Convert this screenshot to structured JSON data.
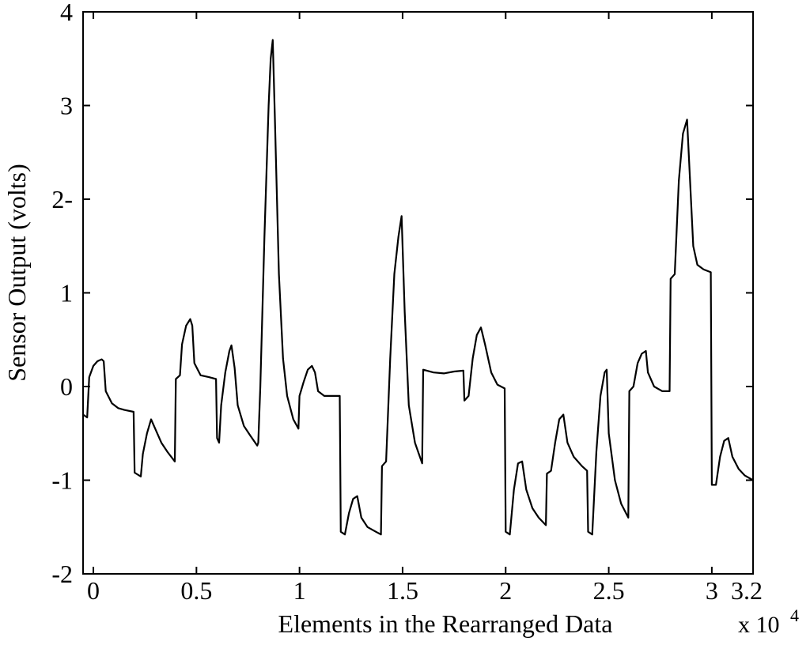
{
  "chart_data": {
    "type": "line",
    "title": "",
    "xlabel": "Elements in the Rearranged Data",
    "ylabel": "Sensor Output (volts)",
    "x_multiplier_label": "x 10",
    "x_multiplier_exponent": "4",
    "xlim": [
      -0.05,
      3.2
    ],
    "ylim": [
      -2,
      4
    ],
    "x_ticks": [
      {
        "value": 0,
        "label": "0"
      },
      {
        "value": 0.5,
        "label": "0.5"
      },
      {
        "value": 1,
        "label": "1"
      },
      {
        "value": 1.5,
        "label": "1.5"
      },
      {
        "value": 2,
        "label": "2"
      },
      {
        "value": 2.5,
        "label": "2.5"
      },
      {
        "value": 3,
        "label": "3"
      },
      {
        "value": 3.2,
        "label": "3.2"
      }
    ],
    "y_ticks": [
      {
        "value": 4,
        "label": "4"
      },
      {
        "value": 3,
        "label": "3"
      },
      {
        "value": 2,
        "label": "2-"
      },
      {
        "value": 1,
        "label": "1"
      },
      {
        "value": 0,
        "label": "0"
      },
      {
        "value": -1,
        "label": "-1"
      },
      {
        "value": -2,
        "label": "-2"
      }
    ],
    "grid": false,
    "legend": "none",
    "line_color": "#000000",
    "series": [
      {
        "values": [
          [
            -0.05,
            -0.3
          ],
          [
            -0.03,
            -0.33
          ],
          [
            -0.02,
            0.1
          ],
          [
            0.0,
            0.22
          ],
          [
            0.02,
            0.27
          ],
          [
            0.04,
            0.29
          ],
          [
            0.05,
            0.27
          ],
          [
            0.06,
            -0.05
          ],
          [
            0.09,
            -0.18
          ],
          [
            0.12,
            -0.23
          ],
          [
            0.15,
            -0.25
          ],
          [
            0.195,
            -0.27
          ],
          [
            0.2,
            -0.92
          ],
          [
            0.23,
            -0.96
          ],
          [
            0.24,
            -0.72
          ],
          [
            0.26,
            -0.5
          ],
          [
            0.28,
            -0.35
          ],
          [
            0.3,
            -0.45
          ],
          [
            0.33,
            -0.6
          ],
          [
            0.36,
            -0.7
          ],
          [
            0.395,
            -0.8
          ],
          [
            0.4,
            0.08
          ],
          [
            0.42,
            0.12
          ],
          [
            0.43,
            0.45
          ],
          [
            0.45,
            0.65
          ],
          [
            0.47,
            0.72
          ],
          [
            0.48,
            0.65
          ],
          [
            0.49,
            0.25
          ],
          [
            0.52,
            0.12
          ],
          [
            0.56,
            0.1
          ],
          [
            0.595,
            0.08
          ],
          [
            0.6,
            -0.55
          ],
          [
            0.61,
            -0.6
          ],
          [
            0.62,
            -0.2
          ],
          [
            0.64,
            0.15
          ],
          [
            0.66,
            0.38
          ],
          [
            0.67,
            0.44
          ],
          [
            0.685,
            0.2
          ],
          [
            0.7,
            -0.2
          ],
          [
            0.73,
            -0.42
          ],
          [
            0.76,
            -0.52
          ],
          [
            0.795,
            -0.63
          ],
          [
            0.8,
            -0.6
          ],
          [
            0.81,
            0.0
          ],
          [
            0.83,
            1.6
          ],
          [
            0.85,
            3.0
          ],
          [
            0.86,
            3.5
          ],
          [
            0.87,
            3.7
          ],
          [
            0.88,
            2.9
          ],
          [
            0.9,
            1.2
          ],
          [
            0.92,
            0.3
          ],
          [
            0.94,
            -0.1
          ],
          [
            0.97,
            -0.35
          ],
          [
            0.995,
            -0.45
          ],
          [
            1.0,
            -0.1
          ],
          [
            1.02,
            0.05
          ],
          [
            1.04,
            0.18
          ],
          [
            1.06,
            0.22
          ],
          [
            1.075,
            0.15
          ],
          [
            1.09,
            -0.05
          ],
          [
            1.12,
            -0.1
          ],
          [
            1.16,
            -0.1
          ],
          [
            1.195,
            -0.1
          ],
          [
            1.2,
            -1.55
          ],
          [
            1.22,
            -1.58
          ],
          [
            1.24,
            -1.35
          ],
          [
            1.26,
            -1.2
          ],
          [
            1.28,
            -1.17
          ],
          [
            1.3,
            -1.4
          ],
          [
            1.33,
            -1.5
          ],
          [
            1.37,
            -1.55
          ],
          [
            1.395,
            -1.58
          ],
          [
            1.4,
            -0.85
          ],
          [
            1.42,
            -0.8
          ],
          [
            1.44,
            0.3
          ],
          [
            1.46,
            1.2
          ],
          [
            1.48,
            1.6
          ],
          [
            1.495,
            1.82
          ],
          [
            1.51,
            0.8
          ],
          [
            1.53,
            -0.2
          ],
          [
            1.56,
            -0.6
          ],
          [
            1.595,
            -0.82
          ],
          [
            1.6,
            0.18
          ],
          [
            1.65,
            0.15
          ],
          [
            1.7,
            0.14
          ],
          [
            1.75,
            0.16
          ],
          [
            1.795,
            0.17
          ],
          [
            1.8,
            -0.15
          ],
          [
            1.82,
            -0.1
          ],
          [
            1.84,
            0.3
          ],
          [
            1.86,
            0.55
          ],
          [
            1.88,
            0.63
          ],
          [
            1.9,
            0.45
          ],
          [
            1.93,
            0.15
          ],
          [
            1.96,
            0.02
          ],
          [
            1.995,
            -0.02
          ],
          [
            2.0,
            -1.55
          ],
          [
            2.02,
            -1.58
          ],
          [
            2.04,
            -1.1
          ],
          [
            2.06,
            -0.82
          ],
          [
            2.08,
            -0.8
          ],
          [
            2.1,
            -1.1
          ],
          [
            2.13,
            -1.3
          ],
          [
            2.16,
            -1.4
          ],
          [
            2.195,
            -1.48
          ],
          [
            2.2,
            -0.93
          ],
          [
            2.22,
            -0.9
          ],
          [
            2.24,
            -0.6
          ],
          [
            2.26,
            -0.35
          ],
          [
            2.28,
            -0.3
          ],
          [
            2.3,
            -0.6
          ],
          [
            2.33,
            -0.75
          ],
          [
            2.37,
            -0.85
          ],
          [
            2.395,
            -0.9
          ],
          [
            2.4,
            -1.55
          ],
          [
            2.42,
            -1.58
          ],
          [
            2.44,
            -0.7
          ],
          [
            2.46,
            -0.1
          ],
          [
            2.48,
            0.15
          ],
          [
            2.49,
            0.18
          ],
          [
            2.5,
            -0.5
          ],
          [
            2.53,
            -1.0
          ],
          [
            2.56,
            -1.25
          ],
          [
            2.595,
            -1.4
          ],
          [
            2.6,
            -0.05
          ],
          [
            2.62,
            0.0
          ],
          [
            2.64,
            0.25
          ],
          [
            2.66,
            0.35
          ],
          [
            2.68,
            0.38
          ],
          [
            2.69,
            0.15
          ],
          [
            2.72,
            0.0
          ],
          [
            2.76,
            -0.05
          ],
          [
            2.795,
            -0.05
          ],
          [
            2.8,
            1.15
          ],
          [
            2.82,
            1.2
          ],
          [
            2.84,
            2.2
          ],
          [
            2.86,
            2.7
          ],
          [
            2.88,
            2.85
          ],
          [
            2.89,
            2.4
          ],
          [
            2.91,
            1.5
          ],
          [
            2.93,
            1.3
          ],
          [
            2.96,
            1.25
          ],
          [
            2.995,
            1.22
          ],
          [
            3.0,
            -1.05
          ],
          [
            3.02,
            -1.05
          ],
          [
            3.04,
            -0.75
          ],
          [
            3.06,
            -0.58
          ],
          [
            3.08,
            -0.55
          ],
          [
            3.1,
            -0.75
          ],
          [
            3.13,
            -0.88
          ],
          [
            3.16,
            -0.95
          ],
          [
            3.2,
            -1.0
          ]
        ]
      }
    ]
  }
}
